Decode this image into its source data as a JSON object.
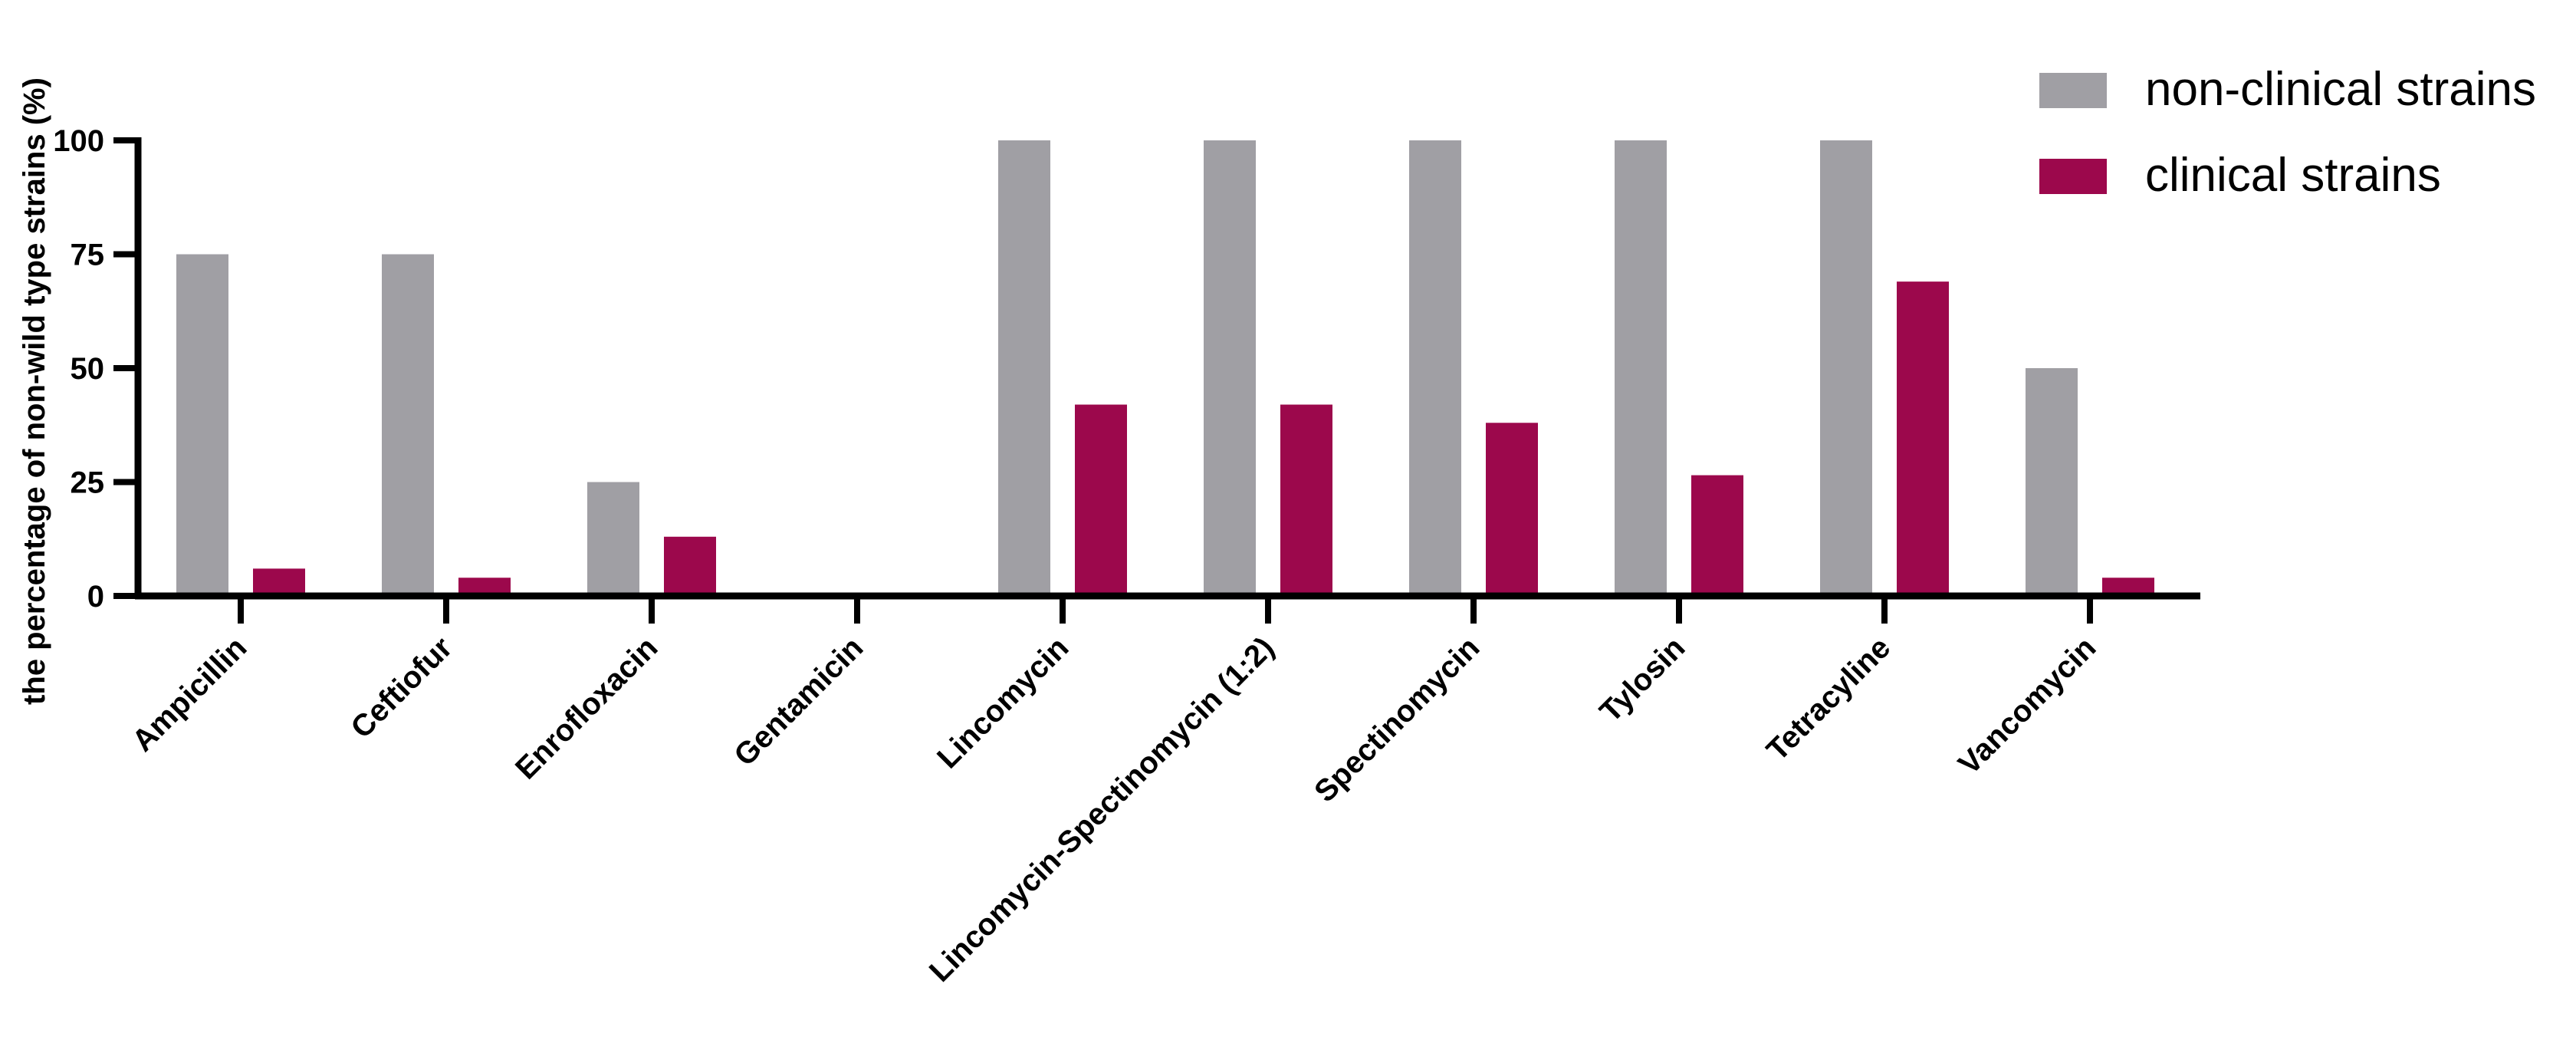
{
  "chart_data": {
    "type": "bar",
    "title": "",
    "xlabel": "",
    "ylabel": "the percentage of non-wild type strains (%)",
    "ylim": [
      0,
      100
    ],
    "yticks": [
      0,
      25,
      50,
      75,
      100
    ],
    "grid": false,
    "legend_position": "top-right",
    "categories": [
      "Ampicillin",
      "Ceftiofur",
      "Enrofloxacin",
      "Gentamicin",
      "Lincomycin",
      "Lincomycin-Spectinomycin (1:2)",
      "Spectinomycin",
      "Tylosin",
      "Tetracyline",
      "Vancomycin"
    ],
    "series": [
      {
        "name": "non-clinical strains",
        "color": "#a09fa4",
        "values": [
          75,
          75,
          25,
          0,
          100,
          100,
          100,
          100,
          100,
          50
        ]
      },
      {
        "name": "clinical strains",
        "color": "#9c084c",
        "values": [
          6,
          4,
          13,
          0,
          42,
          42,
          38,
          26.5,
          69,
          4
        ]
      }
    ]
  }
}
